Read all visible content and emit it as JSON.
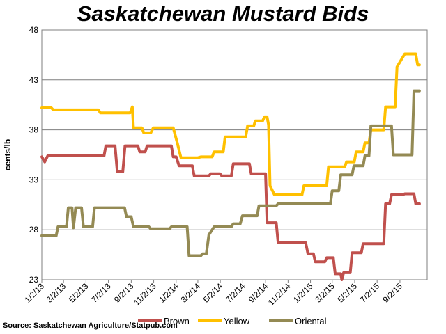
{
  "chart_data": {
    "type": "line",
    "title": "Saskatchewan Mustard Bids",
    "xlabel": "",
    "ylabel": "cents/lb",
    "ylim": [
      23,
      48
    ],
    "yticks": [
      23,
      28,
      33,
      38,
      43,
      48
    ],
    "xlim": [
      "2013-01-02",
      "2015-11-15"
    ],
    "xticks": [
      "1/2/13",
      "3/2/13",
      "5/2/13",
      "7/2/13",
      "9/2/13",
      "11/2/13",
      "1/2/14",
      "3/2/14",
      "5/2/14",
      "7/2/14",
      "9/2/14",
      "11/2/14",
      "1/2/15",
      "3/2/15",
      "5/2/15",
      "7/2/15",
      "9/2/15"
    ],
    "grid": true,
    "legend_position": "bottom",
    "source": "Source: Saskatchewan Agriculture/Statpub.com",
    "series": [
      {
        "name": "Brown",
        "color": "#c0504d",
        "points": [
          [
            "2013-01-02",
            35.3
          ],
          [
            "2013-01-10",
            34.8
          ],
          [
            "2013-01-18",
            35.4
          ],
          [
            "2013-04-05",
            35.4
          ],
          [
            "2013-06-20",
            35.4
          ],
          [
            "2013-06-25",
            36.4
          ],
          [
            "2013-07-20",
            36.4
          ],
          [
            "2013-07-26",
            33.8
          ],
          [
            "2013-08-10",
            33.8
          ],
          [
            "2013-08-16",
            36.4
          ],
          [
            "2013-09-20",
            36.4
          ],
          [
            "2013-09-25",
            35.8
          ],
          [
            "2013-10-10",
            35.8
          ],
          [
            "2013-10-15",
            36.4
          ],
          [
            "2013-12-20",
            36.4
          ],
          [
            "2013-12-25",
            35.3
          ],
          [
            "2014-01-02",
            35.3
          ],
          [
            "2014-01-10",
            34.4
          ],
          [
            "2014-02-15",
            34.4
          ],
          [
            "2014-02-20",
            33.4
          ],
          [
            "2014-04-01",
            33.4
          ],
          [
            "2014-04-06",
            33.6
          ],
          [
            "2014-05-01",
            33.6
          ],
          [
            "2014-05-06",
            33.4
          ],
          [
            "2014-06-01",
            33.4
          ],
          [
            "2014-06-06",
            34.6
          ],
          [
            "2014-07-20",
            34.6
          ],
          [
            "2014-07-25",
            33.6
          ],
          [
            "2014-09-02",
            33.6
          ],
          [
            "2014-09-06",
            28.7
          ],
          [
            "2014-10-01",
            28.7
          ],
          [
            "2014-10-06",
            26.7
          ],
          [
            "2014-12-20",
            26.7
          ],
          [
            "2014-12-26",
            25.6
          ],
          [
            "2015-01-10",
            25.6
          ],
          [
            "2015-01-15",
            24.8
          ],
          [
            "2015-02-10",
            24.8
          ],
          [
            "2015-02-15",
            25.2
          ],
          [
            "2015-03-05",
            25.2
          ],
          [
            "2015-03-10",
            23.6
          ],
          [
            "2015-03-25",
            23.6
          ],
          [
            "2015-03-28",
            23.0
          ],
          [
            "2015-04-02",
            23.7
          ],
          [
            "2015-04-20",
            23.7
          ],
          [
            "2015-04-25",
            25.7
          ],
          [
            "2015-05-20",
            25.7
          ],
          [
            "2015-05-25",
            26.6
          ],
          [
            "2015-07-20",
            26.6
          ],
          [
            "2015-07-25",
            30.6
          ],
          [
            "2015-08-05",
            30.6
          ],
          [
            "2015-08-10",
            31.5
          ],
          [
            "2015-09-10",
            31.5
          ],
          [
            "2015-09-15",
            31.6
          ],
          [
            "2015-10-10",
            31.6
          ],
          [
            "2015-10-15",
            30.6
          ],
          [
            "2015-10-25",
            30.6
          ]
        ]
      },
      {
        "name": "Yellow",
        "color": "#ffc000",
        "points": [
          [
            "2013-01-02",
            40.2
          ],
          [
            "2013-01-28",
            40.2
          ],
          [
            "2013-02-02",
            40.0
          ],
          [
            "2013-06-05",
            40.0
          ],
          [
            "2013-06-10",
            39.7
          ],
          [
            "2013-08-30",
            39.7
          ],
          [
            "2013-09-05",
            40.3
          ],
          [
            "2013-09-08",
            38.2
          ],
          [
            "2013-10-01",
            38.2
          ],
          [
            "2013-10-06",
            37.7
          ],
          [
            "2013-10-25",
            37.7
          ],
          [
            "2013-11-01",
            38.2
          ],
          [
            "2013-12-25",
            38.2
          ],
          [
            "2014-01-05",
            36.7
          ],
          [
            "2014-01-15",
            35.2
          ],
          [
            "2014-03-01",
            35.2
          ],
          [
            "2014-03-10",
            35.3
          ],
          [
            "2014-04-10",
            35.3
          ],
          [
            "2014-04-15",
            35.8
          ],
          [
            "2014-05-10",
            35.8
          ],
          [
            "2014-05-15",
            37.3
          ],
          [
            "2014-07-10",
            37.3
          ],
          [
            "2014-07-15",
            38.4
          ],
          [
            "2014-08-01",
            38.4
          ],
          [
            "2014-08-05",
            38.9
          ],
          [
            "2014-08-25",
            38.9
          ],
          [
            "2014-08-30",
            39.3
          ],
          [
            "2014-09-06",
            39.3
          ],
          [
            "2014-09-10",
            38.5
          ],
          [
            "2014-09-14",
            32.4
          ],
          [
            "2014-09-26",
            31.5
          ],
          [
            "2014-12-10",
            31.5
          ],
          [
            "2014-12-15",
            32.4
          ],
          [
            "2015-02-15",
            32.4
          ],
          [
            "2015-02-20",
            34.3
          ],
          [
            "2015-04-05",
            34.3
          ],
          [
            "2015-04-10",
            34.8
          ],
          [
            "2015-05-01",
            34.8
          ],
          [
            "2015-05-06",
            35.8
          ],
          [
            "2015-05-25",
            35.8
          ],
          [
            "2015-05-30",
            36.7
          ],
          [
            "2015-06-10",
            36.7
          ],
          [
            "2015-06-15",
            38.0
          ],
          [
            "2015-07-20",
            38.0
          ],
          [
            "2015-07-25",
            40.3
          ],
          [
            "2015-08-20",
            40.3
          ],
          [
            "2015-08-25",
            44.3
          ],
          [
            "2015-09-15",
            45.6
          ],
          [
            "2015-10-15",
            45.6
          ],
          [
            "2015-10-20",
            44.5
          ],
          [
            "2015-10-25",
            44.5
          ]
        ]
      },
      {
        "name": "Oriental",
        "color": "#948a54",
        "points": [
          [
            "2013-01-02",
            27.4
          ],
          [
            "2013-02-10",
            27.4
          ],
          [
            "2013-02-15",
            28.3
          ],
          [
            "2013-03-10",
            28.3
          ],
          [
            "2013-03-15",
            30.2
          ],
          [
            "2013-03-25",
            30.2
          ],
          [
            "2013-03-29",
            28.2
          ],
          [
            "2013-04-04",
            30.2
          ],
          [
            "2013-04-20",
            30.2
          ],
          [
            "2013-04-25",
            28.3
          ],
          [
            "2013-05-20",
            28.3
          ],
          [
            "2013-05-25",
            30.2
          ],
          [
            "2013-08-15",
            30.2
          ],
          [
            "2013-08-20",
            29.3
          ],
          [
            "2013-09-02",
            29.3
          ],
          [
            "2013-09-08",
            28.3
          ],
          [
            "2013-10-20",
            28.3
          ],
          [
            "2013-10-25",
            28.1
          ],
          [
            "2013-12-15",
            28.1
          ],
          [
            "2013-12-20",
            28.3
          ],
          [
            "2014-02-01",
            28.3
          ],
          [
            "2014-02-06",
            25.4
          ],
          [
            "2014-03-10",
            25.4
          ],
          [
            "2014-03-15",
            25.6
          ],
          [
            "2014-03-25",
            25.6
          ],
          [
            "2014-04-01",
            27.5
          ],
          [
            "2014-04-15",
            28.3
          ],
          [
            "2014-06-01",
            28.3
          ],
          [
            "2014-06-06",
            28.6
          ],
          [
            "2014-06-25",
            28.6
          ],
          [
            "2014-07-01",
            29.4
          ],
          [
            "2014-08-10",
            29.4
          ],
          [
            "2014-08-15",
            30.4
          ],
          [
            "2014-10-01",
            30.4
          ],
          [
            "2014-10-06",
            30.6
          ],
          [
            "2014-12-20",
            30.6
          ],
          [
            "2014-12-25",
            30.6
          ],
          [
            "2015-02-25",
            30.6
          ],
          [
            "2015-03-02",
            31.9
          ],
          [
            "2015-03-20",
            31.9
          ],
          [
            "2015-03-25",
            33.5
          ],
          [
            "2015-04-25",
            33.5
          ],
          [
            "2015-04-30",
            34.4
          ],
          [
            "2015-05-25",
            34.4
          ],
          [
            "2015-05-30",
            35.4
          ],
          [
            "2015-06-10",
            35.4
          ],
          [
            "2015-06-15",
            38.4
          ],
          [
            "2015-08-10",
            38.4
          ],
          [
            "2015-08-15",
            35.5
          ],
          [
            "2015-10-05",
            35.5
          ],
          [
            "2015-10-10",
            41.9
          ],
          [
            "2015-10-25",
            41.9
          ]
        ]
      }
    ]
  }
}
